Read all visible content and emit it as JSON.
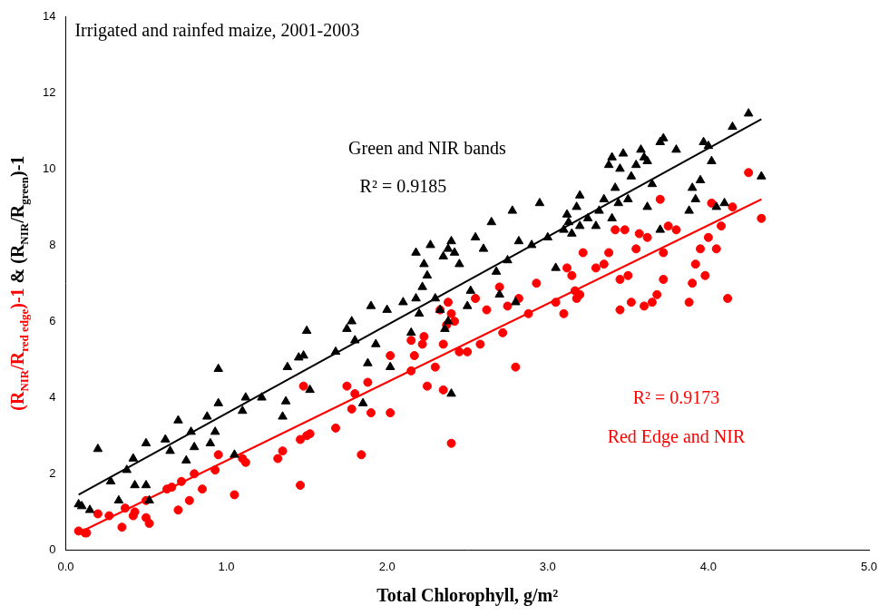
{
  "chart_data": {
    "type": "scatter",
    "title": "Irrigated and rainfed maize, 2001-2003",
    "xlabel": "Total Chlorophyll, g/m²",
    "ylabel": [
      {
        "parts": [
          "(R",
          "NIR",
          "/R",
          "red edge",
          ")-1"
        ],
        "color": "#ff0000"
      },
      {
        "parts": [
          " & (R",
          "NIR",
          "/R",
          "green",
          ")-1"
        ],
        "color": "#000000"
      }
    ],
    "xlim": [
      0,
      5
    ],
    "xticks": [
      {
        "value": 0,
        "label": "0.0"
      },
      {
        "value": 1,
        "label": "1.0"
      },
      {
        "value": 2,
        "label": "2.0"
      },
      {
        "value": 3,
        "label": "3.0"
      },
      {
        "value": 4,
        "label": "4.0"
      },
      {
        "value": 5,
        "label": "5.0"
      }
    ],
    "ylim": [
      0,
      14
    ],
    "yticks": [
      0,
      2,
      4,
      6,
      8,
      10,
      12,
      14
    ],
    "grid": false,
    "series": [
      {
        "name": "Green and NIR bands",
        "color": "#000000",
        "marker": "triangle",
        "fit_label": "R² = 0.9185",
        "fit_x": [
          0.08,
          4.33
        ],
        "fit_values": [
          1.45,
          11.3
        ],
        "x": [
          0.08,
          0.1,
          0.15,
          0.2,
          0.28,
          0.33,
          0.38,
          0.42,
          0.43,
          0.5,
          0.5,
          0.52,
          0.62,
          0.65,
          0.7,
          0.75,
          0.78,
          0.8,
          0.88,
          0.9,
          0.93,
          0.95,
          0.95,
          1.05,
          1.1,
          1.12,
          1.22,
          1.35,
          1.37,
          1.38,
          1.45,
          1.48,
          1.5,
          1.52,
          1.68,
          1.75,
          1.78,
          1.8,
          1.85,
          1.88,
          1.9,
          1.93,
          2.0,
          2.02,
          2.1,
          2.15,
          2.18,
          2.18,
          2.2,
          2.22,
          2.23,
          2.25,
          2.27,
          2.3,
          2.33,
          2.35,
          2.36,
          2.38,
          2.38,
          2.4,
          2.4,
          2.42,
          2.45,
          2.5,
          2.52,
          2.55,
          2.6,
          2.65,
          2.68,
          2.7,
          2.75,
          2.78,
          2.8,
          2.82,
          2.9,
          2.95,
          3.0,
          3.05,
          3.1,
          3.12,
          3.13,
          3.15,
          3.18,
          3.2,
          3.2,
          3.25,
          3.3,
          3.32,
          3.35,
          3.38,
          3.4,
          3.4,
          3.42,
          3.44,
          3.45,
          3.47,
          3.5,
          3.52,
          3.55,
          3.58,
          3.6,
          3.62,
          3.62,
          3.65,
          3.7,
          3.72,
          3.7,
          3.8,
          3.88,
          3.9,
          3.92,
          3.95,
          3.97,
          4.0,
          4.02,
          4.05,
          4.1,
          4.15,
          4.25,
          4.33
        ],
        "values": [
          1.2,
          1.15,
          1.05,
          2.65,
          1.8,
          1.3,
          2.1,
          2.4,
          1.7,
          1.7,
          2.8,
          1.3,
          2.9,
          2.6,
          3.4,
          2.35,
          3.1,
          2.7,
          3.5,
          2.8,
          3.1,
          3.85,
          4.75,
          2.5,
          3.65,
          4.0,
          4.0,
          3.5,
          3.9,
          4.8,
          5.05,
          5.1,
          5.75,
          4.2,
          5.2,
          5.8,
          6.0,
          5.5,
          3.85,
          4.9,
          6.4,
          5.4,
          6.3,
          4.8,
          6.5,
          5.7,
          6.6,
          7.8,
          6.2,
          6.9,
          7.5,
          7.2,
          8.0,
          6.6,
          6.3,
          7.7,
          5.8,
          6.0,
          7.9,
          4.1,
          8.1,
          7.8,
          7.5,
          6.4,
          6.8,
          8.2,
          7.9,
          8.6,
          7.3,
          6.7,
          7.6,
          8.9,
          6.5,
          8.1,
          8.0,
          9.1,
          8.2,
          7.4,
          8.4,
          8.8,
          8.6,
          8.3,
          9.0,
          9.3,
          8.5,
          8.7,
          8.5,
          8.9,
          9.2,
          10.1,
          10.3,
          8.7,
          9.5,
          9.1,
          10.0,
          10.4,
          9.2,
          9.8,
          10.1,
          10.5,
          10.3,
          10.2,
          9.0,
          9.6,
          10.7,
          10.8,
          8.4,
          10.5,
          8.9,
          9.5,
          9.2,
          9.7,
          10.7,
          10.6,
          10.2,
          9.0,
          9.1,
          11.1,
          11.45,
          9.8
        ]
      },
      {
        "name": "Red Edge and NIR",
        "color": "#ff0000",
        "marker": "circle",
        "fit_label": "R² = 0.9173",
        "fit_x": [
          0.08,
          4.33
        ],
        "fit_values": [
          0.45,
          9.2
        ],
        "x": [
          0.08,
          0.12,
          0.13,
          0.2,
          0.27,
          0.35,
          0.37,
          0.42,
          0.43,
          0.5,
          0.5,
          0.52,
          0.63,
          0.66,
          0.7,
          0.72,
          0.77,
          0.8,
          0.85,
          0.93,
          0.95,
          1.05,
          1.1,
          1.12,
          1.32,
          1.35,
          1.46,
          1.46,
          1.48,
          1.5,
          1.52,
          1.68,
          1.75,
          1.78,
          1.8,
          1.84,
          1.88,
          1.9,
          2.02,
          2.02,
          2.15,
          2.15,
          2.17,
          2.22,
          2.23,
          2.25,
          2.3,
          2.33,
          2.35,
          2.35,
          2.37,
          2.38,
          2.4,
          2.4,
          2.42,
          2.45,
          2.5,
          2.55,
          2.58,
          2.62,
          2.7,
          2.72,
          2.75,
          2.8,
          2.82,
          2.88,
          2.93,
          3.05,
          3.1,
          3.12,
          3.15,
          3.17,
          3.18,
          3.2,
          3.22,
          3.3,
          3.35,
          3.38,
          3.42,
          3.45,
          3.45,
          3.48,
          3.5,
          3.52,
          3.55,
          3.57,
          3.6,
          3.62,
          3.65,
          3.68,
          3.7,
          3.72,
          3.72,
          3.75,
          3.8,
          3.88,
          3.9,
          3.92,
          3.95,
          3.98,
          4.0,
          4.02,
          4.05,
          4.08,
          4.12,
          4.15,
          4.25,
          4.33
        ],
        "values": [
          0.5,
          0.45,
          0.45,
          0.95,
          0.9,
          0.6,
          1.1,
          0.9,
          1.0,
          1.3,
          0.85,
          0.7,
          1.6,
          1.65,
          1.05,
          1.8,
          1.3,
          2.0,
          1.6,
          2.1,
          2.5,
          1.45,
          2.4,
          2.3,
          2.4,
          2.6,
          1.7,
          2.9,
          4.3,
          3.0,
          3.05,
          3.2,
          4.3,
          3.7,
          4.1,
          2.5,
          4.4,
          3.6,
          3.6,
          5.1,
          4.7,
          5.5,
          5.1,
          5.4,
          5.6,
          4.3,
          4.8,
          6.3,
          5.4,
          4.2,
          5.9,
          6.5,
          2.8,
          6.2,
          6.0,
          5.2,
          5.2,
          6.6,
          5.4,
          6.3,
          6.9,
          5.7,
          6.4,
          4.8,
          6.6,
          6.2,
          7.0,
          6.5,
          6.2,
          7.4,
          7.2,
          6.8,
          6.6,
          6.7,
          7.8,
          7.4,
          7.5,
          7.8,
          8.4,
          6.3,
          7.1,
          8.4,
          7.2,
          6.5,
          7.9,
          8.3,
          6.4,
          8.2,
          6.5,
          6.7,
          9.2,
          7.8,
          7.1,
          8.5,
          8.4,
          6.5,
          7.0,
          7.5,
          7.9,
          7.2,
          8.2,
          9.1,
          7.9,
          8.5,
          6.6,
          9.0,
          9.9,
          8.7
        ]
      }
    ]
  }
}
